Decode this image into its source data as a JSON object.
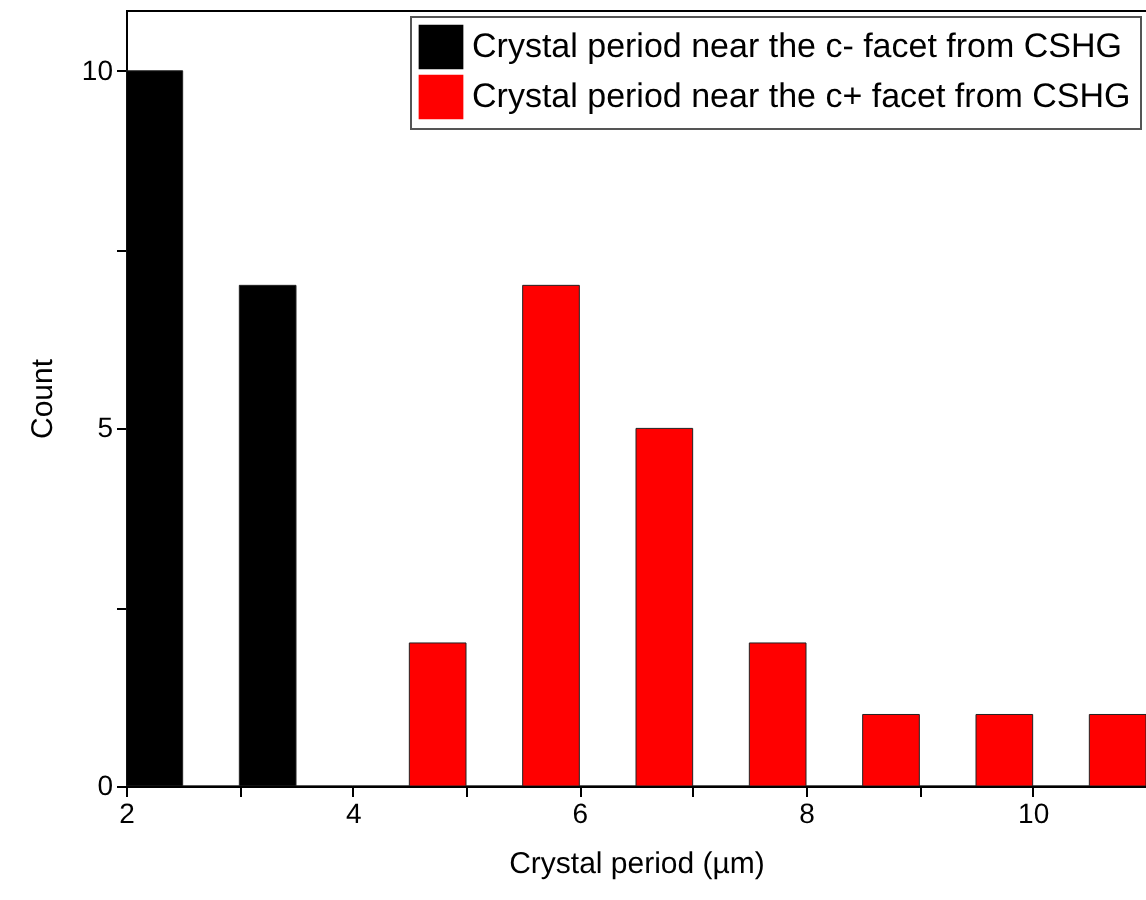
{
  "chart_data": {
    "type": "histogram",
    "xlabel": "Crystal period (µm)",
    "ylabel": "Count",
    "bins": [
      2,
      2.5,
      3,
      3.5,
      4,
      4.5,
      5,
      5.5,
      6,
      6.5,
      7,
      7.5,
      8,
      8.5,
      9,
      9.5,
      10,
      10.5,
      11
    ],
    "series": [
      {
        "name": "Crystal period near the c- facet from CSHG",
        "color": "#000000",
        "values": [
          10,
          0,
          7,
          0,
          null,
          null,
          null,
          null,
          null,
          null,
          null,
          null,
          null,
          null,
          null,
          null,
          null,
          null
        ]
      },
      {
        "name": "Crystal period near the c+ facet from CSHG",
        "color": "#ff0000",
        "values": [
          null,
          null,
          null,
          null,
          0,
          2,
          0,
          7,
          0,
          5,
          0,
          2,
          0,
          1,
          0,
          1,
          0,
          1
        ]
      }
    ],
    "xlim": [
      2,
      11
    ],
    "xticks": [
      2,
      {
        "value": 3,
        "label": null
      },
      4,
      {
        "value": 5,
        "label": null
      },
      6,
      {
        "value": 7,
        "label": null
      },
      8,
      {
        "value": 9,
        "label": null
      },
      10
    ],
    "ylim": [
      0,
      10.85
    ],
    "yticks": [
      0,
      {
        "value": 2.5,
        "label": null
      },
      5,
      {
        "value": 7.5,
        "label": null
      },
      10
    ],
    "legend": "top right",
    "grid": false
  }
}
